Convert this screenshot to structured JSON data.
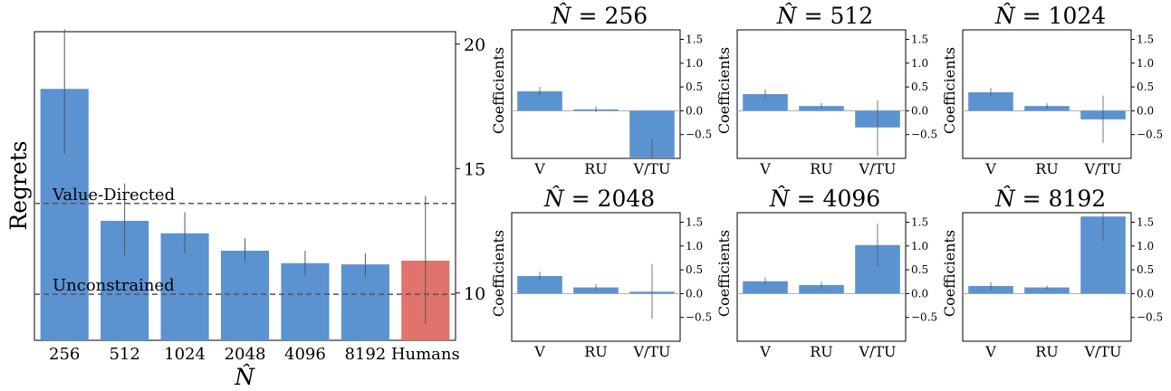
{
  "colors": {
    "bar": "#5b93d1",
    "human_bar": "#e0736b",
    "error": "#555555",
    "ref_line": "#555555",
    "zero_line": "#aaaaaa"
  },
  "chart_data": [
    {
      "type": "bar",
      "title": "",
      "xlabel": "N̂",
      "ylabel": "Regrets",
      "categories": [
        "256",
        "512",
        "1024",
        "2048",
        "4096",
        "8192",
        "Humans"
      ],
      "values": [
        18.2,
        12.9,
        12.4,
        11.7,
        11.2,
        11.15,
        11.3
      ],
      "error_low": [
        15.6,
        11.5,
        11.6,
        11.25,
        10.7,
        10.65,
        8.75
      ],
      "error_high": [
        20.6,
        14.4,
        13.25,
        12.2,
        11.7,
        11.6,
        13.9
      ],
      "highlight": [
        "",
        "",
        "",
        "",
        "",
        "",
        "human_bar"
      ],
      "ylim": [
        8.1,
        20.5
      ],
      "yticks": [
        10,
        15,
        20
      ],
      "y_axis_side": "right",
      "reference_lines": [
        {
          "label": "Value-Directed",
          "y": 13.6
        },
        {
          "label": "Unconstrained",
          "y": 9.95
        }
      ]
    },
    {
      "type": "bar",
      "title": "N̂ = 256",
      "ylabel": "Coefficients",
      "categories": [
        "V",
        "RU",
        "V/TU"
      ],
      "values": [
        0.41,
        0.03,
        -0.98
      ],
      "error_low": [
        0.32,
        -0.03,
        -1.02
      ],
      "error_high": [
        0.5,
        0.09,
        -0.58
      ],
      "ylim": [
        -1.0,
        1.7
      ],
      "yticks": [
        -0.5,
        0.0,
        0.5,
        1.0,
        1.5
      ]
    },
    {
      "type": "bar",
      "title": "N̂ = 512",
      "ylabel": "Coefficients",
      "categories": [
        "V",
        "RU",
        "V/TU"
      ],
      "values": [
        0.35,
        0.1,
        -0.35
      ],
      "error_low": [
        0.26,
        0.05,
        -0.95
      ],
      "error_high": [
        0.45,
        0.16,
        0.22
      ],
      "ylim": [
        -1.0,
        1.7
      ],
      "yticks": [
        -0.5,
        0.0,
        0.5,
        1.0,
        1.5
      ]
    },
    {
      "type": "bar",
      "title": "N̂ = 1024",
      "ylabel": "Coefficients",
      "categories": [
        "V",
        "RU",
        "V/TU"
      ],
      "values": [
        0.39,
        0.1,
        -0.18
      ],
      "error_low": [
        0.3,
        0.04,
        -0.68
      ],
      "error_high": [
        0.48,
        0.16,
        0.32
      ],
      "ylim": [
        -1.0,
        1.7
      ],
      "yticks": [
        -0.5,
        0.0,
        0.5,
        1.0,
        1.5
      ]
    },
    {
      "type": "bar",
      "title": "N̂ = 2048",
      "ylabel": "Coefficients",
      "categories": [
        "V",
        "RU",
        "V/TU"
      ],
      "values": [
        0.37,
        0.13,
        0.04
      ],
      "error_low": [
        0.28,
        0.07,
        -0.53
      ],
      "error_high": [
        0.46,
        0.2,
        0.62
      ],
      "ylim": [
        -1.0,
        1.7
      ],
      "yticks": [
        -0.5,
        0.0,
        0.5,
        1.0,
        1.5
      ]
    },
    {
      "type": "bar",
      "title": "N̂ = 4096",
      "ylabel": "Coefficients",
      "categories": [
        "V",
        "RU",
        "V/TU"
      ],
      "values": [
        0.26,
        0.18,
        1.02
      ],
      "error_low": [
        0.19,
        0.11,
        0.57
      ],
      "error_high": [
        0.34,
        0.25,
        1.47
      ],
      "ylim": [
        -1.0,
        1.7
      ],
      "yticks": [
        -0.5,
        0.0,
        0.5,
        1.0,
        1.5
      ]
    },
    {
      "type": "bar",
      "title": "N̂ = 8192",
      "ylabel": "Coefficients",
      "categories": [
        "V",
        "RU",
        "V/TU"
      ],
      "values": [
        0.16,
        0.13,
        1.62
      ],
      "error_low": [
        0.08,
        0.09,
        1.1
      ],
      "error_high": [
        0.24,
        0.17,
        1.75
      ],
      "ylim": [
        -1.0,
        1.7
      ],
      "yticks": [
        -0.5,
        0.0,
        0.5,
        1.0,
        1.5
      ]
    }
  ]
}
